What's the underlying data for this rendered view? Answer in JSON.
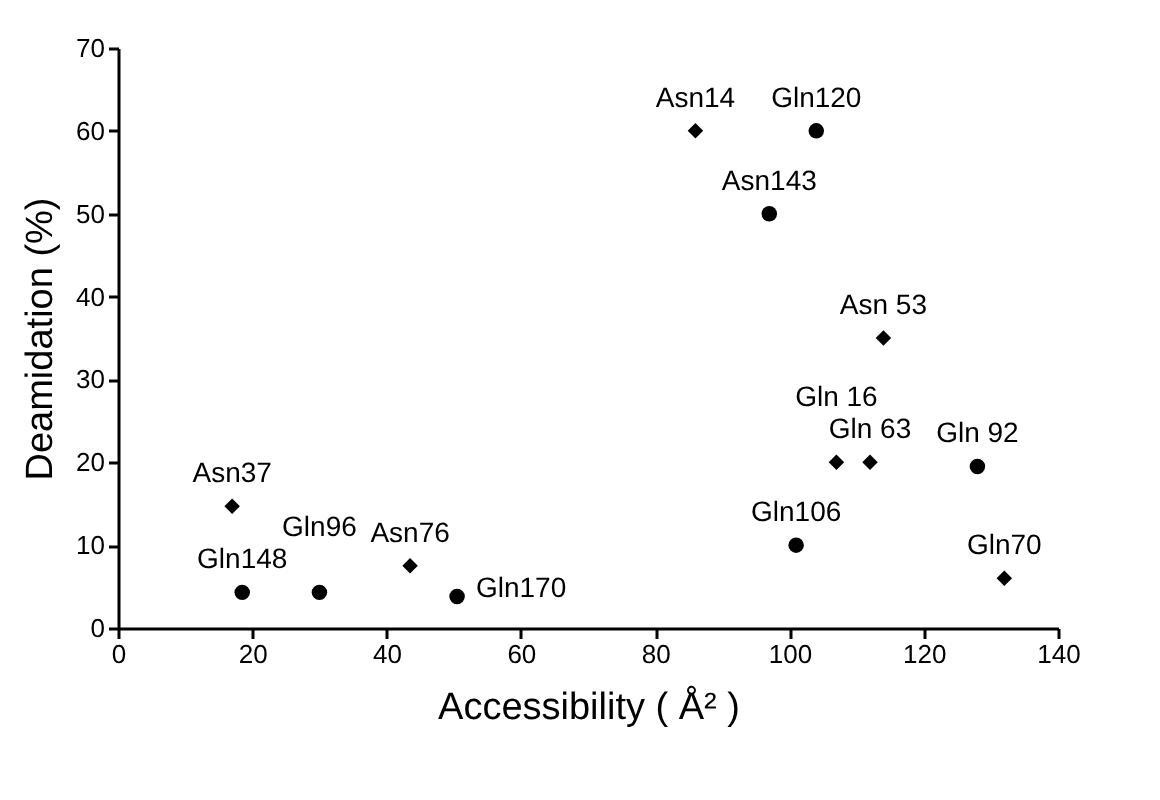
{
  "chart_data": {
    "type": "scatter",
    "xlabel": "Accessibility ( Å² )",
    "ylabel": "Deamidation (%)",
    "xlim": [
      0,
      140
    ],
    "xticks": [
      0,
      20,
      40,
      60,
      80,
      100,
      120,
      140
    ],
    "ylim": [
      0,
      70
    ],
    "yticks": [
      0,
      10,
      20,
      30,
      40,
      50,
      60,
      70
    ],
    "grid": false,
    "series": [
      {
        "color": "#000000",
        "marker": "diamond",
        "x": [
          86,
          114,
          107,
          112,
          17,
          43.5,
          132
        ],
        "values": [
          60,
          35,
          20,
          20,
          14.7,
          7.5,
          6
        ]
      },
      {
        "color": "#000000",
        "marker": "circle",
        "x": [
          104,
          97,
          128,
          101,
          18.5,
          30,
          50.5
        ],
        "values": [
          60,
          50,
          19.5,
          10,
          4.3,
          4.3,
          3.8
        ]
      }
    ],
    "annotations": [
      {
        "text": "Asn14",
        "x": 86,
        "y": 60
      },
      {
        "text": "Gln120",
        "x": 104,
        "y": 60
      },
      {
        "text": "Asn143",
        "x": 97,
        "y": 50
      },
      {
        "text": "Asn 53",
        "x": 114,
        "y": 35
      },
      {
        "text": "Gln 63",
        "x": 112,
        "y": 20
      },
      {
        "text": "Gln 16",
        "x": 107,
        "y": 20
      },
      {
        "text": "Gln 92",
        "x": 128,
        "y": 19.5
      },
      {
        "text": "Gln106",
        "x": 101,
        "y": 10
      },
      {
        "text": "Gln70",
        "x": 132,
        "y": 6
      },
      {
        "text": "Asn37",
        "x": 17,
        "y": 14.7
      },
      {
        "text": "Asn76",
        "x": 43.5,
        "y": 7.5
      },
      {
        "text": "Gln148",
        "x": 18.5,
        "y": 4.3
      },
      {
        "text": "Gln96",
        "x": 30,
        "y": 4.3
      },
      {
        "text": "Gln170",
        "x": 50.5,
        "y": 3.8
      }
    ]
  }
}
